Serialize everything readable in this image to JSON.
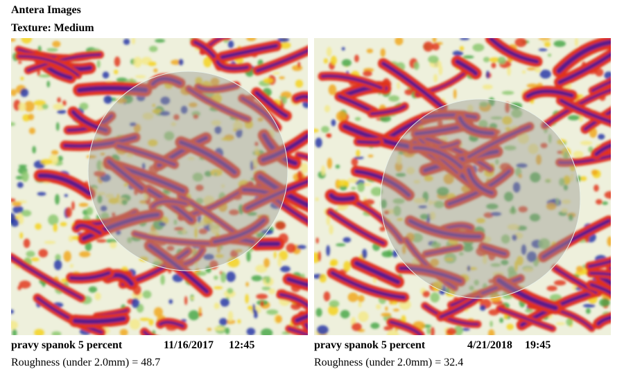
{
  "header": {
    "title": "Antera Images",
    "subtitle": "Texture: Medium"
  },
  "panels": [
    {
      "name": "pravy spanok 5 percent",
      "date": "11/16/2017",
      "time": "12:45",
      "roughness_label": "Roughness (under 2.0mm) =",
      "roughness": 48.7
    },
    {
      "name": "pravy spanok 5 percent",
      "date": "4/21/2018",
      "time": "19:45",
      "roughness_label": "Roughness (under 2.0mm) =",
      "roughness": 32.4
    }
  ]
}
